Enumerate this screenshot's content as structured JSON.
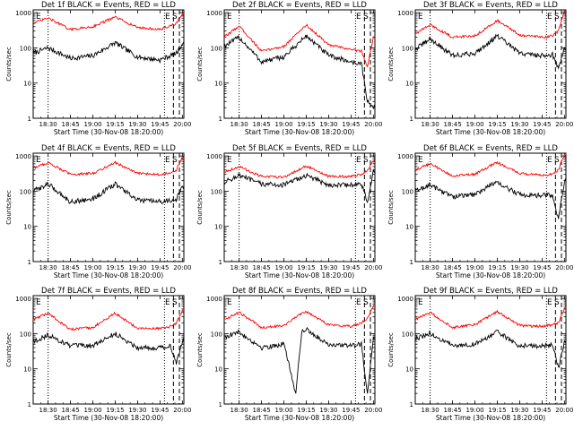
{
  "colors": {
    "events": "#000000",
    "lld": "#ff0000",
    "axes": "#000000"
  },
  "chart_data": [
    {
      "type": "line",
      "detector": "1f",
      "title": "Det 1f BLACK = Events, RED = LLD",
      "xlabel": "Start Time (30-Nov-08 18:20:00)",
      "ylabel": "Counts/sec",
      "x_ticks": [
        "18:30",
        "18:45",
        "19:00",
        "19:15",
        "19:30",
        "19:45",
        "20:00"
      ],
      "y_ticks": [
        "1",
        "10",
        "100",
        "1000"
      ],
      "yscale": "log",
      "ylim": [
        1,
        1200
      ],
      "xlim_minutes_after_1820": [
        0,
        101
      ],
      "markers": [
        "E",
        "E",
        "S"
      ],
      "vlines_dotted": [
        "18:30",
        "19:48"
      ],
      "vlines_dashed": [
        "19:54",
        "19:58"
      ],
      "series": [
        {
          "name": "Events",
          "color": "black",
          "x": [
            "18:20",
            "18:30",
            "18:45",
            "19:00",
            "19:15",
            "19:30",
            "19:45",
            "19:52",
            "19:56",
            "20:00"
          ],
          "y": [
            70,
            100,
            50,
            60,
            140,
            55,
            45,
            60,
            70,
            130
          ]
        },
        {
          "name": "LLD",
          "color": "red",
          "x": [
            "18:20",
            "18:30",
            "18:45",
            "19:00",
            "19:15",
            "19:30",
            "19:45",
            "19:52",
            "19:56",
            "20:00"
          ],
          "y": [
            500,
            700,
            330,
            400,
            750,
            380,
            330,
            420,
            500,
            900
          ]
        }
      ]
    },
    {
      "type": "line",
      "detector": "2f",
      "title": "Det 2f BLACK = Events, RED = LLD",
      "xlabel": "Start Time (30-Nov-08 18:20:00)",
      "ylabel": "Counts/sec",
      "x_ticks": [
        "18:30",
        "18:45",
        "19:00",
        "19:15",
        "19:30",
        "19:45",
        "20:00"
      ],
      "y_ticks": [
        "1",
        "10",
        "100",
        "1000"
      ],
      "yscale": "log",
      "ylim": [
        1,
        1200
      ],
      "xlim_minutes_after_1820": [
        0,
        101
      ],
      "markers": [
        "E",
        "E",
        "S"
      ],
      "vlines_dotted": [
        "18:30",
        "19:48"
      ],
      "vlines_dashed": [
        "19:54",
        "19:58"
      ],
      "series": [
        {
          "name": "Events",
          "color": "black",
          "x": [
            "18:20",
            "18:30",
            "18:45",
            "19:00",
            "19:15",
            "19:30",
            "19:45",
            "19:52",
            "19:56",
            "20:00"
          ],
          "y": [
            110,
            200,
            40,
            55,
            220,
            60,
            40,
            35,
            3,
            2
          ]
        },
        {
          "name": "LLD",
          "color": "red",
          "x": [
            "18:20",
            "18:30",
            "18:45",
            "19:00",
            "19:15",
            "19:30",
            "19:45",
            "19:52",
            "19:56",
            "20:00"
          ],
          "y": [
            200,
            420,
            80,
            110,
            450,
            120,
            90,
            80,
            30,
            200
          ]
        }
      ]
    },
    {
      "type": "line",
      "detector": "3f",
      "title": "Det 3f BLACK = Events, RED = LLD",
      "xlabel": "Start Time (30-Nov-08 18:20:00)",
      "ylabel": "Counts/sec",
      "x_ticks": [
        "18:30",
        "18:45",
        "19:00",
        "19:15",
        "19:30",
        "19:45",
        "20:00"
      ],
      "y_ticks": [
        "1",
        "10",
        "100",
        "1000"
      ],
      "yscale": "log",
      "ylim": [
        1,
        1200
      ],
      "xlim_minutes_after_1820": [
        0,
        101
      ],
      "markers": [
        "E",
        "E",
        "S"
      ],
      "vlines_dotted": [
        "18:30",
        "19:48"
      ],
      "vlines_dashed": [
        "19:54",
        "19:58"
      ],
      "series": [
        {
          "name": "Events",
          "color": "black",
          "x": [
            "18:20",
            "18:30",
            "18:45",
            "19:00",
            "19:15",
            "19:30",
            "19:45",
            "19:52",
            "19:56",
            "20:00"
          ],
          "y": [
            90,
            180,
            60,
            70,
            220,
            70,
            60,
            65,
            25,
            100
          ]
        },
        {
          "name": "LLD",
          "color": "red",
          "x": [
            "18:20",
            "18:30",
            "18:45",
            "19:00",
            "19:15",
            "19:30",
            "19:45",
            "19:52",
            "19:56",
            "20:00"
          ],
          "y": [
            250,
            450,
            200,
            220,
            600,
            230,
            200,
            220,
            300,
            1100
          ]
        }
      ]
    },
    {
      "type": "line",
      "detector": "4f",
      "title": "Det 4f BLACK = Events, RED = LLD",
      "xlabel": "Start Time (30-Nov-08 18:20:00)",
      "ylabel": "Counts/sec",
      "x_ticks": [
        "18:30",
        "18:45",
        "19:00",
        "19:15",
        "19:30",
        "19:45",
        "20:00"
      ],
      "y_ticks": [
        "1",
        "10",
        "100",
        "1000"
      ],
      "yscale": "log",
      "ylim": [
        1,
        1200
      ],
      "xlim_minutes_after_1820": [
        0,
        101
      ],
      "markers": [
        "E",
        "E",
        "S"
      ],
      "vlines_dotted": [
        "18:30",
        "19:48"
      ],
      "vlines_dashed": [
        "19:54",
        "19:58"
      ],
      "series": [
        {
          "name": "Events",
          "color": "black",
          "x": [
            "18:20",
            "18:30",
            "18:45",
            "19:00",
            "19:15",
            "19:30",
            "19:45",
            "19:52",
            "19:56",
            "20:00"
          ],
          "y": [
            100,
            160,
            50,
            60,
            160,
            55,
            50,
            55,
            60,
            130
          ]
        },
        {
          "name": "LLD",
          "color": "red",
          "x": [
            "18:20",
            "18:30",
            "18:45",
            "19:00",
            "19:15",
            "19:30",
            "19:45",
            "19:52",
            "19:56",
            "20:00"
          ],
          "y": [
            450,
            650,
            300,
            320,
            650,
            320,
            300,
            330,
            400,
            900
          ]
        }
      ]
    },
    {
      "type": "line",
      "detector": "5f",
      "title": "Det 5f BLACK = Events, RED = LLD",
      "xlabel": "Start Time (30-Nov-08 18:20:00)",
      "ylabel": "Counts/sec",
      "x_ticks": [
        "18:30",
        "18:45",
        "19:00",
        "19:15",
        "19:30",
        "19:45",
        "20:00"
      ],
      "y_ticks": [
        "1",
        "10",
        "100",
        "1000"
      ],
      "yscale": "log",
      "ylim": [
        1,
        1200
      ],
      "xlim_minutes_after_1820": [
        0,
        101
      ],
      "markers": [
        "E",
        "E",
        "S"
      ],
      "vlines_dotted": [
        "18:30",
        "19:48"
      ],
      "vlines_dashed": [
        "19:54",
        "19:58"
      ],
      "series": [
        {
          "name": "Events",
          "color": "black",
          "x": [
            "18:20",
            "18:30",
            "18:45",
            "19:00",
            "19:15",
            "19:30",
            "19:45",
            "19:52",
            "19:56",
            "20:00"
          ],
          "y": [
            180,
            280,
            160,
            150,
            280,
            150,
            150,
            160,
            50,
            350
          ]
        },
        {
          "name": "LLD",
          "color": "red",
          "x": [
            "18:20",
            "18:30",
            "18:45",
            "19:00",
            "19:15",
            "19:30",
            "19:45",
            "19:52",
            "19:56",
            "20:00"
          ],
          "y": [
            350,
            500,
            260,
            250,
            520,
            260,
            260,
            300,
            400,
            700
          ]
        }
      ]
    },
    {
      "type": "line",
      "detector": "6f",
      "title": "Det 6f BLACK = Events, RED = LLD",
      "xlabel": "Start Time (30-Nov-08 18:20:00)",
      "ylabel": "Counts/sec",
      "x_ticks": [
        "18:30",
        "18:45",
        "19:00",
        "19:15",
        "19:30",
        "19:45",
        "20:00"
      ],
      "y_ticks": [
        "1",
        "10",
        "100",
        "1000"
      ],
      "yscale": "log",
      "ylim": [
        1,
        1200
      ],
      "xlim_minutes_after_1820": [
        0,
        101
      ],
      "markers": [
        "E",
        "E",
        "S"
      ],
      "vlines_dotted": [
        "18:30",
        "19:48"
      ],
      "vlines_dashed": [
        "19:54",
        "19:58"
      ],
      "series": [
        {
          "name": "Events",
          "color": "black",
          "x": [
            "18:20",
            "18:30",
            "18:45",
            "19:00",
            "19:10",
            "19:15",
            "19:30",
            "19:45",
            "19:52",
            "19:56",
            "20:00"
          ],
          "y": [
            100,
            150,
            70,
            80,
            150,
            170,
            80,
            75,
            80,
            15,
            200
          ]
        },
        {
          "name": "LLD",
          "color": "red",
          "x": [
            "18:20",
            "18:30",
            "18:45",
            "19:00",
            "19:10",
            "19:15",
            "19:30",
            "19:45",
            "19:52",
            "19:56",
            "20:00"
          ],
          "y": [
            400,
            600,
            270,
            300,
            520,
            650,
            320,
            280,
            300,
            400,
            1100
          ]
        }
      ]
    },
    {
      "type": "line",
      "detector": "7f",
      "title": "Det 7f BLACK = Events, RED = LLD",
      "xlabel": "Start Time (30-Nov-08 18:20:00)",
      "ylabel": "Counts/sec",
      "x_ticks": [
        "18:30",
        "18:45",
        "19:00",
        "19:15",
        "19:30",
        "19:45",
        "20:00"
      ],
      "y_ticks": [
        "1",
        "10",
        "100",
        "1000"
      ],
      "yscale": "log",
      "ylim": [
        1,
        1200
      ],
      "xlim_minutes_after_1820": [
        0,
        101
      ],
      "markers": [
        "E",
        "E",
        "S"
      ],
      "vlines_dotted": [
        "18:30",
        "19:48"
      ],
      "vlines_dashed": [
        "19:54",
        "19:58"
      ],
      "series": [
        {
          "name": "Events",
          "color": "black",
          "x": [
            "18:20",
            "18:30",
            "18:45",
            "19:00",
            "19:15",
            "19:30",
            "19:45",
            "19:52",
            "19:56",
            "20:00"
          ],
          "y": [
            60,
            90,
            45,
            45,
            100,
            40,
            40,
            45,
            15,
            60
          ]
        },
        {
          "name": "LLD",
          "color": "red",
          "x": [
            "18:20",
            "18:30",
            "18:45",
            "19:00",
            "19:15",
            "19:30",
            "19:45",
            "19:52",
            "19:56",
            "20:00"
          ],
          "y": [
            250,
            380,
            130,
            150,
            380,
            140,
            140,
            160,
            200,
            450
          ]
        }
      ]
    },
    {
      "type": "line",
      "detector": "8f",
      "title": "Det 8f BLACK = Events, RED = LLD",
      "xlabel": "Start Time (30-Nov-08 18:20:00)",
      "ylabel": "Counts/sec",
      "x_ticks": [
        "18:30",
        "18:45",
        "19:00",
        "19:15",
        "19:30",
        "19:45",
        "20:00"
      ],
      "y_ticks": [
        "1",
        "10",
        "100",
        "1000"
      ],
      "yscale": "log",
      "ylim": [
        1,
        1200
      ],
      "xlim_minutes_after_1820": [
        0,
        101
      ],
      "markers": [
        "E",
        "E",
        "S"
      ],
      "vlines_dotted": [
        "18:30",
        "19:48"
      ],
      "vlines_dashed": [
        "19:54",
        "19:58"
      ],
      "series": [
        {
          "name": "Events",
          "color": "black",
          "x": [
            "18:20",
            "18:30",
            "18:45",
            "19:00",
            "19:08",
            "19:12",
            "19:15",
            "19:30",
            "19:45",
            "19:52",
            "19:56",
            "20:00"
          ],
          "y": [
            80,
            110,
            40,
            50,
            2,
            120,
            130,
            50,
            45,
            50,
            2,
            80
          ]
        },
        {
          "name": "LLD",
          "color": "red",
          "x": [
            "18:20",
            "18:30",
            "18:45",
            "19:00",
            "19:08",
            "19:12",
            "19:15",
            "19:30",
            "19:45",
            "19:52",
            "19:56",
            "20:00"
          ],
          "y": [
            250,
            400,
            150,
            170,
            300,
            380,
            420,
            180,
            160,
            200,
            280,
            600
          ]
        }
      ]
    },
    {
      "type": "line",
      "detector": "9f",
      "title": "Det 9f BLACK = Events, RED = LLD",
      "xlabel": "Start Time (30-Nov-08 18:20:00)",
      "ylabel": "Counts/sec",
      "x_ticks": [
        "18:30",
        "18:45",
        "19:00",
        "19:15",
        "19:30",
        "19:45",
        "20:00"
      ],
      "y_ticks": [
        "1",
        "10",
        "100",
        "1000"
      ],
      "yscale": "log",
      "ylim": [
        1,
        1200
      ],
      "xlim_minutes_after_1820": [
        0,
        101
      ],
      "markers": [
        "E",
        "E",
        "S"
      ],
      "vlines_dotted": [
        "18:30",
        "19:48"
      ],
      "vlines_dashed": [
        "19:54",
        "19:58"
      ],
      "series": [
        {
          "name": "Events",
          "color": "black",
          "x": [
            "18:20",
            "18:30",
            "18:45",
            "19:00",
            "19:15",
            "19:30",
            "19:45",
            "19:52",
            "19:56",
            "20:00"
          ],
          "y": [
            70,
            100,
            45,
            50,
            110,
            45,
            45,
            50,
            10,
            60
          ]
        },
        {
          "name": "LLD",
          "color": "red",
          "x": [
            "18:20",
            "18:30",
            "18:45",
            "19:00",
            "19:15",
            "19:30",
            "19:45",
            "19:52",
            "19:56",
            "20:00"
          ],
          "y": [
            250,
            400,
            150,
            180,
            420,
            170,
            160,
            180,
            200,
            500
          ]
        }
      ]
    }
  ]
}
